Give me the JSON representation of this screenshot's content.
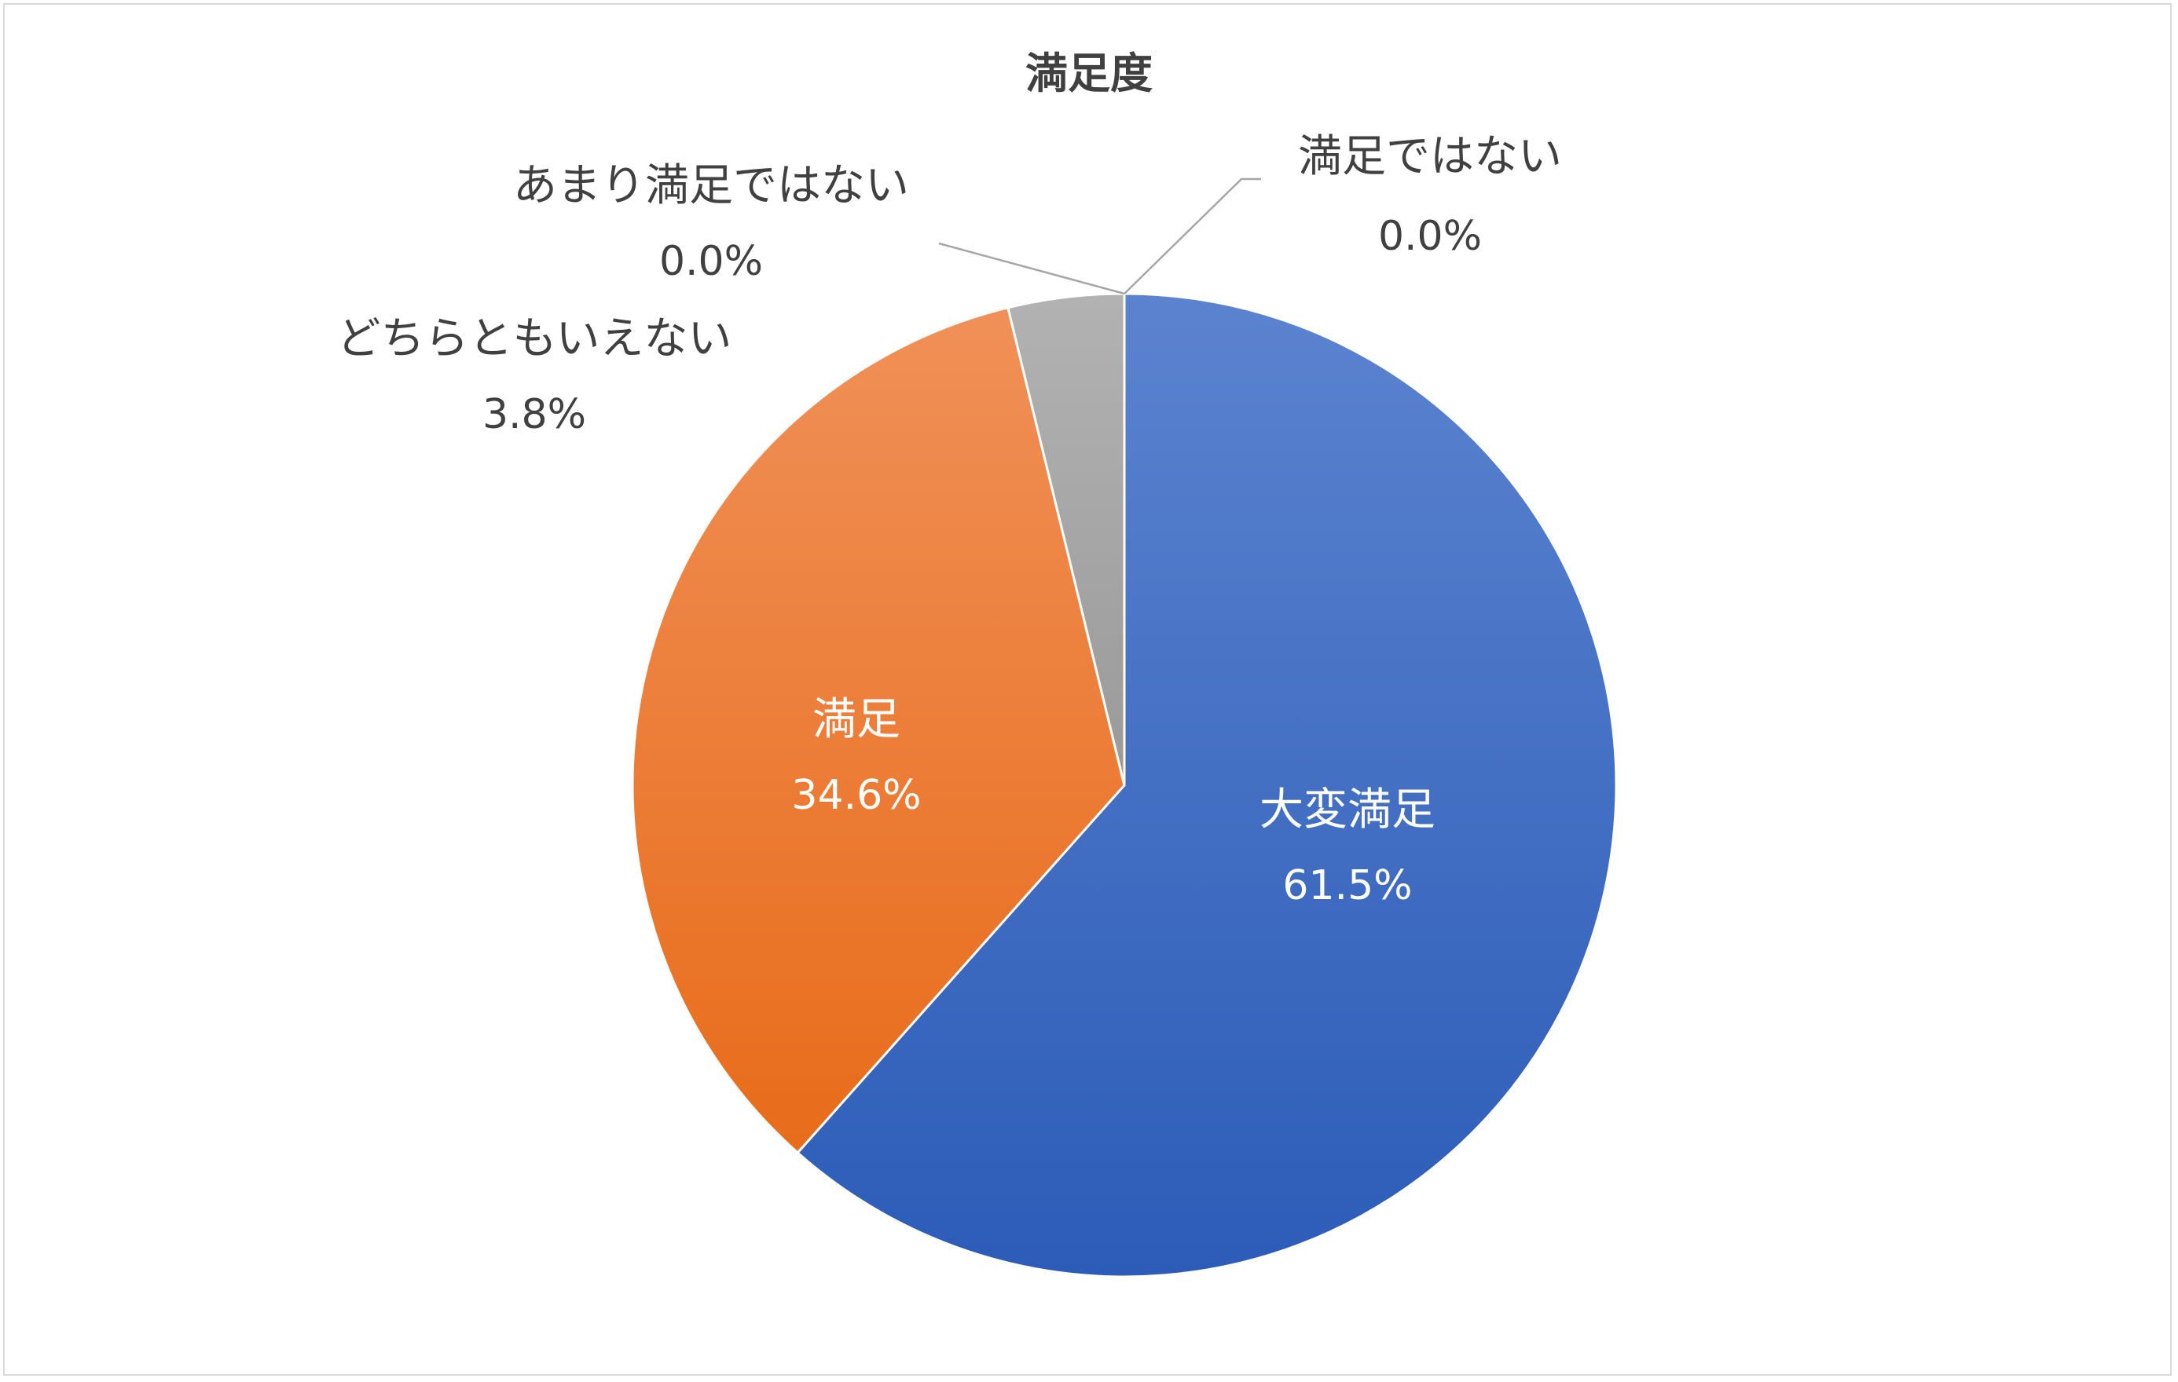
{
  "chart_data": {
    "type": "pie",
    "title": "満足度",
    "categories": [
      "大変満足",
      "満足",
      "どちらともいえない",
      "あまり満足ではない",
      "満足ではない"
    ],
    "values": [
      61.5,
      34.6,
      3.8,
      0.0,
      0.0
    ],
    "value_labels": [
      "61.5%",
      "34.6%",
      "3.8%",
      "0.0%",
      "0.0%"
    ],
    "colors": [
      "#3a6bc8",
      "#f07a2a",
      "#a5a5a5",
      "#ffc000",
      "#5b9bd5"
    ],
    "start_angle": "12 o'clock",
    "direction": "clockwise",
    "legend": "none"
  }
}
